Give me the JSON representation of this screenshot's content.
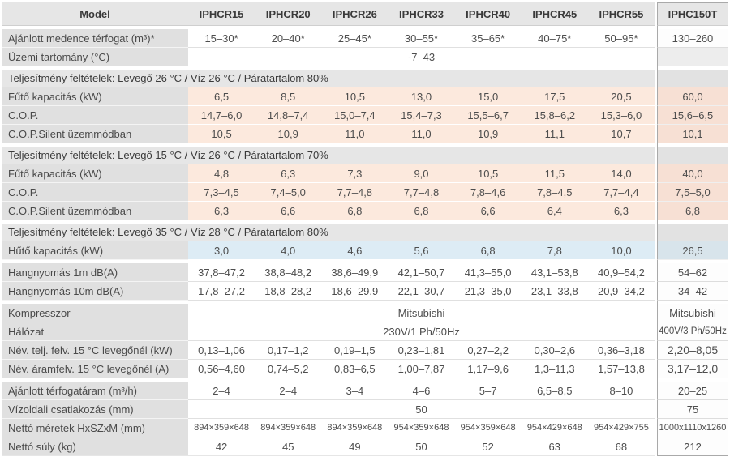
{
  "colors": {
    "header_bg": "#e6e6e6",
    "label_bg": "#e0e0e0",
    "heating_row_bg": "#fce9dd",
    "cooling_row_bg": "#ddecf5",
    "highlight_column_border": "#a9a9a9",
    "text": "#4d4d4d"
  },
  "table": {
    "columns": [
      "Model",
      "IPHCR15",
      "IPHCR20",
      "IPHCR26",
      "IPHCR33",
      "IPHCR40",
      "IPHCR45",
      "IPHCR55",
      "IPHC150T"
    ],
    "rows": [
      {
        "type": "data",
        "gapBefore": true,
        "bg": "white",
        "label": "Ajánlott medence térfogat (m³)*",
        "values": [
          "15–30*",
          "20–40*",
          "25–45*",
          "30–55*",
          "35–65*",
          "40–75*",
          "50–95*"
        ],
        "last": "130–260"
      },
      {
        "type": "span",
        "bg": "white",
        "label": "Üzemi tartomány (°C)",
        "span": "-7–43",
        "last": "",
        "lastBg": "gray"
      },
      {
        "type": "section",
        "gapBefore": true,
        "label": "Teljesítmény feltételek: Levegő 26 °C / Víz 26 °C / Páratartalom  80%"
      },
      {
        "type": "data",
        "bg": "peach",
        "label": "Fűtő kapacitás (kW)",
        "values": [
          "6,5",
          "8,5",
          "10,5",
          "13,0",
          "15,0",
          "17,5",
          "20,5"
        ],
        "last": "60,0"
      },
      {
        "type": "data",
        "bg": "peach",
        "label": "C.O.P.",
        "values": [
          "14,7–6,0",
          "14,8–7,4",
          "15,0–7,4",
          "15,4–7,3",
          "15,5–6,7",
          "15,8–6,2",
          "15,3–6,0"
        ],
        "last": "15,6–6,5"
      },
      {
        "type": "data",
        "bg": "peach",
        "label": "C.O.P.Silent üzemmódban",
        "values": [
          "10,5",
          "10,9",
          "11,0",
          "11,0",
          "10,9",
          "11,1",
          "10,7"
        ],
        "last": "10,1"
      },
      {
        "type": "section",
        "gapBefore": true,
        "label": "Teljesítmény feltételek: Levegő 15 °C / Víz 26 °C / Páratartalom  70%"
      },
      {
        "type": "data",
        "bg": "peach",
        "label": "Fűtő kapacitás (kW)",
        "values": [
          "4,8",
          "6,3",
          "7,3",
          "9,0",
          "10,5",
          "11,5",
          "14,0"
        ],
        "last": "40,0"
      },
      {
        "type": "data",
        "bg": "peach",
        "label": "C.O.P.",
        "values": [
          "7,3–4,5",
          "7,4–5,0",
          "7,7–4,8",
          "7,7–4,8",
          "7,8–4,6",
          "7,8–4,5",
          "7,7–4,4"
        ],
        "last": "7,5–5,0"
      },
      {
        "type": "data",
        "bg": "peach",
        "label": "C.O.P.Silent üzemmódban",
        "values": [
          "6,3",
          "6,6",
          "6,8",
          "6,8",
          "6,6",
          "6,4",
          "6,3"
        ],
        "last": "6,8"
      },
      {
        "type": "section",
        "gapBefore": true,
        "label": "Teljesítmény feltételek: Levegő 35 °C / Víz 28 °C / Páratartalom  80%"
      },
      {
        "type": "data",
        "bg": "blue",
        "label": "Hűtő kapacitás (kW)",
        "values": [
          "3,0",
          "4,0",
          "4,6",
          "5,6",
          "6,8",
          "7,8",
          "10,0"
        ],
        "last": "26,5"
      },
      {
        "type": "data",
        "gapBefore": true,
        "bg": "white",
        "label": "Hangnyomás 1m dB(A)",
        "values": [
          "37,8–47,2",
          "38,8–48,2",
          "38,6–49,9",
          "42,1–50,7",
          "41,3–55,0",
          "43,1–53,8",
          "40,9–54,2"
        ],
        "last": "54–62"
      },
      {
        "type": "data",
        "bg": "white",
        "label": "Hangnyomás 10m dB(A)",
        "values": [
          "17,8–27,2",
          "18,8–28,2",
          "18,6–29,9",
          "22,1–30,7",
          "21,3–35,0",
          "23,1–33,8",
          "20,9–34,2"
        ],
        "last": "34–42"
      },
      {
        "type": "span",
        "gapBefore": true,
        "bg": "white",
        "label": "Kompresszor",
        "span": "Mitsubishi",
        "last": "Mitsubishi"
      },
      {
        "type": "span",
        "bg": "white",
        "label": "Hálózat",
        "span": "230V/1 Ph/50Hz",
        "last": "400V/3 Ph/50Hz",
        "lastSmall": true
      },
      {
        "type": "data",
        "bg": "white",
        "label": "Név. telj. felv. 15 °C levegőnél (kW)",
        "values": [
          "0,13–1,06",
          "0,17–1,2",
          "0,19–1,5",
          "0,23–1,81",
          "0,27–2,2",
          "0,30–2,6",
          "0,36–3,18"
        ],
        "last": "2,20–8,05",
        "lastBig": true
      },
      {
        "type": "data",
        "bg": "white",
        "label": "Név. áramfelv. 15 °C levegőnél (A)",
        "values": [
          "0,56–4,60",
          "0,74–5,2",
          "0,83–6,5",
          "1,00–7,87",
          "1,17–9,6",
          "1,3–11,3",
          "1,57–13,8"
        ],
        "last": "3,17–12,0",
        "lastBig": true
      },
      {
        "type": "data",
        "gapBefore": true,
        "bg": "white",
        "label": "Ajánlott térfogatáram (m³/h)",
        "values": [
          "2–4",
          "2–4",
          "3–4",
          "4–6",
          "5–7",
          "6,5–8,5",
          "8–10"
        ],
        "last": "20–25"
      },
      {
        "type": "span",
        "bg": "white",
        "label": "Vízoldali csatlakozás (mm)",
        "span": "50",
        "last": "75"
      },
      {
        "type": "data",
        "bg": "white",
        "label": "Nettó méretek HxSZxM (mm)",
        "small": true,
        "values": [
          "894×359×648",
          "894×359×648",
          "894×359×648",
          "954×359×648",
          "954×359×648",
          "954×429×648",
          "954×429×755"
        ],
        "last": "1000x1110x1260"
      },
      {
        "type": "data",
        "bg": "white",
        "label": "Nettó súly (kg)",
        "values": [
          "42",
          "45",
          "49",
          "50",
          "52",
          "63",
          "68"
        ],
        "last": "212"
      }
    ]
  }
}
